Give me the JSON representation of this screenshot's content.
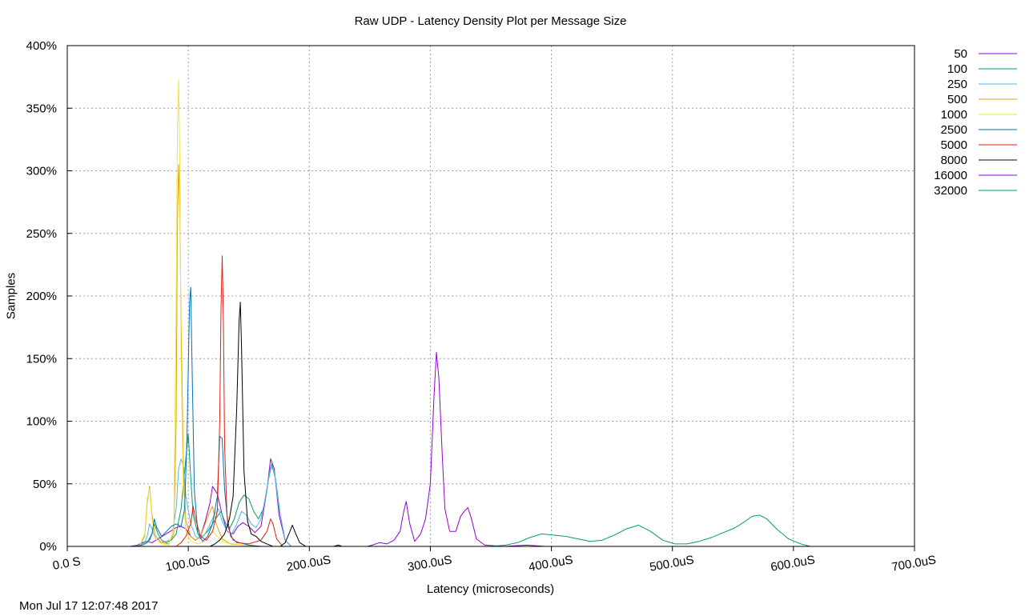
{
  "timestamp": "Mon Jul 17 12:07:48 2017",
  "chart_data": {
    "type": "line",
    "title": "Raw UDP - Latency Density Plot per Message Size",
    "xlabel": "Latency (microseconds)",
    "ylabel": "Samples",
    "xlim": [
      0,
      700
    ],
    "ylim": [
      0,
      400
    ],
    "grid": true,
    "legend_position": "right",
    "x_ticks": [
      {
        "value": 0,
        "label": "0.0 S"
      },
      {
        "value": 100,
        "label": "100.0uS"
      },
      {
        "value": 200,
        "label": "200.0uS"
      },
      {
        "value": 300,
        "label": "300.0uS"
      },
      {
        "value": 400,
        "label": "400.0uS"
      },
      {
        "value": 500,
        "label": "500.0uS"
      },
      {
        "value": 600,
        "label": "600.0uS"
      },
      {
        "value": 700,
        "label": "700.0uS"
      }
    ],
    "y_ticks": [
      {
        "value": 0,
        "label": "0%"
      },
      {
        "value": 50,
        "label": "50%"
      },
      {
        "value": 100,
        "label": "100%"
      },
      {
        "value": 150,
        "label": "150%"
      },
      {
        "value": 200,
        "label": "200%"
      },
      {
        "value": 250,
        "label": "250%"
      },
      {
        "value": 300,
        "label": "300%"
      },
      {
        "value": 350,
        "label": "350%"
      },
      {
        "value": 400,
        "label": "400%"
      }
    ],
    "series": [
      {
        "name": "50",
        "color": "#9400d3",
        "points": [
          [
            52,
            0
          ],
          [
            58,
            1
          ],
          [
            62,
            3
          ],
          [
            66,
            4
          ],
          [
            70,
            3
          ],
          [
            75,
            6
          ],
          [
            80,
            9
          ],
          [
            85,
            12
          ],
          [
            90,
            15
          ],
          [
            94,
            16
          ],
          [
            98,
            14
          ],
          [
            102,
            8
          ],
          [
            106,
            5
          ],
          [
            110,
            8
          ],
          [
            114,
            20
          ],
          [
            118,
            35
          ],
          [
            120,
            48
          ],
          [
            124,
            42
          ],
          [
            128,
            25
          ],
          [
            132,
            12
          ],
          [
            137,
            10
          ],
          [
            141,
            16
          ],
          [
            145,
            19
          ],
          [
            150,
            16
          ],
          [
            155,
            11
          ],
          [
            160,
            16
          ],
          [
            165,
            45
          ],
          [
            168,
            70
          ],
          [
            171,
            62
          ],
          [
            175,
            25
          ],
          [
            180,
            5
          ],
          [
            185,
            0
          ]
        ]
      },
      {
        "name": "100",
        "color": "#009e73",
        "points": [
          [
            55,
            0
          ],
          [
            60,
            1
          ],
          [
            64,
            3
          ],
          [
            68,
            5
          ],
          [
            70,
            10
          ],
          [
            72,
            18
          ],
          [
            75,
            10
          ],
          [
            78,
            5
          ],
          [
            82,
            3
          ],
          [
            86,
            5
          ],
          [
            90,
            10
          ],
          [
            94,
            30
          ],
          [
            97,
            60
          ],
          [
            100,
            90
          ],
          [
            102,
            55
          ],
          [
            104,
            25
          ],
          [
            108,
            10
          ],
          [
            112,
            8
          ],
          [
            116,
            12
          ],
          [
            120,
            18
          ],
          [
            124,
            24
          ],
          [
            127,
            28
          ],
          [
            130,
            20
          ],
          [
            134,
            14
          ],
          [
            138,
            22
          ],
          [
            142,
            35
          ],
          [
            146,
            41
          ],
          [
            150,
            38
          ],
          [
            154,
            28
          ],
          [
            158,
            22
          ],
          [
            162,
            30
          ],
          [
            166,
            52
          ],
          [
            169,
            66
          ],
          [
            172,
            54
          ],
          [
            176,
            25
          ],
          [
            180,
            5
          ],
          [
            185,
            0
          ]
        ]
      },
      {
        "name": "250",
        "color": "#56b4e9",
        "points": [
          [
            55,
            0
          ],
          [
            60,
            1
          ],
          [
            64,
            3
          ],
          [
            66,
            8
          ],
          [
            68,
            18
          ],
          [
            70,
            14
          ],
          [
            73,
            6
          ],
          [
            77,
            3
          ],
          [
            82,
            4
          ],
          [
            86,
            6
          ],
          [
            90,
            30
          ],
          [
            92,
            62
          ],
          [
            94,
            70
          ],
          [
            96,
            64
          ],
          [
            98,
            40
          ],
          [
            102,
            18
          ],
          [
            106,
            8
          ],
          [
            110,
            6
          ],
          [
            114,
            10
          ],
          [
            118,
            18
          ],
          [
            122,
            26
          ],
          [
            125,
            30
          ],
          [
            128,
            20
          ],
          [
            132,
            12
          ],
          [
            136,
            10
          ],
          [
            140,
            18
          ],
          [
            144,
            28
          ],
          [
            148,
            25
          ],
          [
            152,
            18
          ],
          [
            156,
            15
          ],
          [
            160,
            22
          ],
          [
            164,
            40
          ],
          [
            168,
            64
          ],
          [
            171,
            60
          ],
          [
            175,
            30
          ],
          [
            180,
            5
          ],
          [
            185,
            0
          ]
        ]
      },
      {
        "name": "500",
        "color": "#e69f00",
        "points": [
          [
            55,
            0
          ],
          [
            60,
            1
          ],
          [
            64,
            8
          ],
          [
            66,
            35
          ],
          [
            68,
            48
          ],
          [
            70,
            25
          ],
          [
            73,
            8
          ],
          [
            78,
            3
          ],
          [
            84,
            2
          ],
          [
            88,
            10
          ],
          [
            90,
            100
          ],
          [
            91,
            255
          ],
          [
            92,
            305
          ],
          [
            93,
            270
          ],
          [
            94,
            180
          ],
          [
            96,
            60
          ],
          [
            98,
            20
          ],
          [
            102,
            8
          ],
          [
            106,
            5
          ],
          [
            110,
            8
          ],
          [
            114,
            18
          ],
          [
            118,
            28
          ],
          [
            120,
            32
          ],
          [
            123,
            18
          ],
          [
            128,
            6
          ],
          [
            135,
            2
          ],
          [
            145,
            1
          ],
          [
            160,
            0
          ]
        ]
      },
      {
        "name": "1000",
        "color": "#f0e442",
        "points": [
          [
            55,
            0
          ],
          [
            60,
            1
          ],
          [
            64,
            10
          ],
          [
            66,
            38
          ],
          [
            68,
            46
          ],
          [
            70,
            22
          ],
          [
            73,
            6
          ],
          [
            78,
            2
          ],
          [
            84,
            1
          ],
          [
            88,
            15
          ],
          [
            90,
            190
          ],
          [
            91,
            330
          ],
          [
            92,
            373
          ],
          [
            93,
            300
          ],
          [
            94,
            150
          ],
          [
            96,
            40
          ],
          [
            98,
            12
          ],
          [
            102,
            4
          ],
          [
            108,
            2
          ],
          [
            115,
            5
          ],
          [
            120,
            12
          ],
          [
            124,
            8
          ],
          [
            130,
            3
          ],
          [
            145,
            1
          ],
          [
            160,
            0
          ]
        ]
      },
      {
        "name": "2500",
        "color": "#0072b2",
        "points": [
          [
            55,
            0
          ],
          [
            62,
            1
          ],
          [
            66,
            3
          ],
          [
            70,
            10
          ],
          [
            72,
            22
          ],
          [
            74,
            15
          ],
          [
            78,
            8
          ],
          [
            82,
            12
          ],
          [
            86,
            16
          ],
          [
            90,
            18
          ],
          [
            94,
            16
          ],
          [
            97,
            30
          ],
          [
            99,
            90
          ],
          [
            101,
            195
          ],
          [
            102,
            207
          ],
          [
            103,
            150
          ],
          [
            105,
            45
          ],
          [
            108,
            10
          ],
          [
            112,
            4
          ],
          [
            116,
            8
          ],
          [
            120,
            18
          ],
          [
            124,
            40
          ],
          [
            126,
            88
          ],
          [
            128,
            86
          ],
          [
            130,
            45
          ],
          [
            133,
            15
          ],
          [
            137,
            5
          ],
          [
            142,
            3
          ],
          [
            150,
            1
          ],
          [
            160,
            0
          ]
        ]
      },
      {
        "name": "5000",
        "color": "#e51e10",
        "points": [
          [
            90,
            0
          ],
          [
            94,
            3
          ],
          [
            98,
            8
          ],
          [
            102,
            18
          ],
          [
            104,
            32
          ],
          [
            106,
            22
          ],
          [
            110,
            8
          ],
          [
            115,
            5
          ],
          [
            120,
            12
          ],
          [
            124,
            28
          ],
          [
            126,
            100
          ],
          [
            127,
            190
          ],
          [
            128,
            232
          ],
          [
            129,
            180
          ],
          [
            130,
            80
          ],
          [
            132,
            25
          ],
          [
            135,
            8
          ],
          [
            140,
            3
          ],
          [
            150,
            2
          ],
          [
            160,
            5
          ],
          [
            165,
            12
          ],
          [
            168,
            22
          ],
          [
            170,
            18
          ],
          [
            173,
            6
          ],
          [
            178,
            0
          ]
        ]
      },
      {
        "name": "8000",
        "color": "#000000",
        "points": [
          [
            118,
            0
          ],
          [
            122,
            2
          ],
          [
            126,
            5
          ],
          [
            130,
            10
          ],
          [
            134,
            22
          ],
          [
            137,
            40
          ],
          [
            140,
            110
          ],
          [
            142,
            180
          ],
          [
            143,
            195
          ],
          [
            144,
            160
          ],
          [
            146,
            60
          ],
          [
            149,
            20
          ],
          [
            152,
            10
          ],
          [
            156,
            8
          ],
          [
            160,
            4
          ],
          [
            165,
            2
          ],
          [
            170,
            0
          ],
          [
            176,
            0
          ],
          [
            180,
            3
          ],
          [
            184,
            12
          ],
          [
            186,
            17
          ],
          [
            188,
            12
          ],
          [
            192,
            3
          ],
          [
            197,
            0
          ],
          [
            220,
            0
          ],
          [
            224,
            1
          ],
          [
            227,
            0
          ]
        ]
      },
      {
        "name": "16000",
        "color": "#9400d3",
        "points": [
          [
            248,
            0
          ],
          [
            252,
            1
          ],
          [
            258,
            3
          ],
          [
            264,
            2
          ],
          [
            270,
            5
          ],
          [
            275,
            12
          ],
          [
            278,
            28
          ],
          [
            280,
            36
          ],
          [
            283,
            18
          ],
          [
            287,
            4
          ],
          [
            292,
            10
          ],
          [
            296,
            22
          ],
          [
            300,
            50
          ],
          [
            303,
            120
          ],
          [
            305,
            155
          ],
          [
            307,
            135
          ],
          [
            310,
            70
          ],
          [
            312,
            30
          ],
          [
            316,
            12
          ],
          [
            321,
            12
          ],
          [
            325,
            24
          ],
          [
            328,
            28
          ],
          [
            331,
            31
          ],
          [
            334,
            22
          ],
          [
            338,
            6
          ],
          [
            345,
            1
          ],
          [
            360,
            0
          ],
          [
            380,
            1
          ],
          [
            395,
            0
          ]
        ]
      },
      {
        "name": "32000",
        "color": "#009e73",
        "points": [
          [
            335,
            0
          ],
          [
            350,
            0
          ],
          [
            362,
            1
          ],
          [
            372,
            3
          ],
          [
            382,
            7
          ],
          [
            392,
            10
          ],
          [
            402,
            9
          ],
          [
            412,
            8
          ],
          [
            422,
            6
          ],
          [
            432,
            4
          ],
          [
            442,
            5
          ],
          [
            452,
            9
          ],
          [
            462,
            14
          ],
          [
            472,
            17
          ],
          [
            482,
            12
          ],
          [
            492,
            5
          ],
          [
            502,
            2
          ],
          [
            512,
            2
          ],
          [
            522,
            4
          ],
          [
            532,
            7
          ],
          [
            542,
            11
          ],
          [
            552,
            15
          ],
          [
            560,
            20
          ],
          [
            566,
            24
          ],
          [
            572,
            25
          ],
          [
            578,
            22
          ],
          [
            586,
            14
          ],
          [
            596,
            6
          ],
          [
            606,
            2
          ],
          [
            614,
            0
          ]
        ]
      }
    ]
  }
}
